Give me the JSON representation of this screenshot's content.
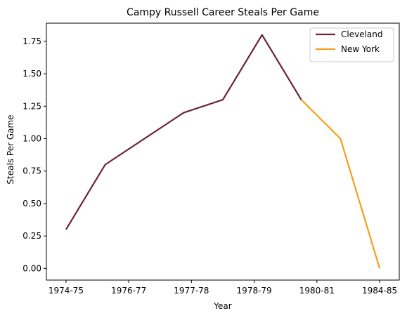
{
  "chart_data": {
    "type": "line",
    "title": "Campy Russell Career Steals Per Game",
    "xlabel": "Year",
    "ylabel": "Steals Per Game",
    "x_tick_labels": [
      "1974-75",
      "1976-77",
      "1977-78",
      "1978-79",
      "1980-81",
      "1984-85"
    ],
    "ylim": [
      -0.09,
      1.89
    ],
    "y_ticks": [
      0.0,
      0.25,
      0.5,
      0.75,
      1.0,
      1.25,
      1.5,
      1.75
    ],
    "y_tick_labels": [
      "0.00",
      "0.25",
      "0.50",
      "0.75",
      "1.00",
      "1.25",
      "1.50",
      "1.75"
    ],
    "xlim": [
      -0.5,
      8.5
    ],
    "series": [
      {
        "name": "Cleveland",
        "color": "#6b2338",
        "points": [
          {
            "x": 0,
            "y": 0.3
          },
          {
            "x": 1,
            "y": 0.8
          },
          {
            "x": 3,
            "y": 1.2
          },
          {
            "x": 4,
            "y": 1.3
          },
          {
            "x": 5,
            "y": 1.8
          },
          {
            "x": 6,
            "y": 1.3
          }
        ]
      },
      {
        "name": "New York",
        "color": "#f59e1b",
        "points": [
          {
            "x": 6,
            "y": 1.3
          },
          {
            "x": 7,
            "y": 1.0
          },
          {
            "x": 8,
            "y": 0.0
          }
        ]
      }
    ],
    "legend_position": "top-right",
    "grid": false
  }
}
